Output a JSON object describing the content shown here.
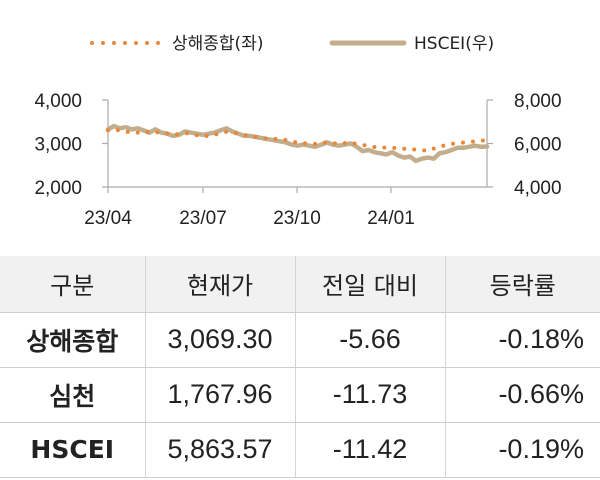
{
  "chart_data": {
    "type": "line",
    "x_ticks": [
      "23/04",
      "23/07",
      "23/10",
      "24/01"
    ],
    "y_left": {
      "ticks": [
        "4,000",
        "3,000",
        "2,000"
      ],
      "range": [
        2000,
        4000
      ]
    },
    "y_right": {
      "ticks": [
        "8,000",
        "6,000",
        "4,000"
      ],
      "range": [
        4000,
        8000
      ]
    },
    "legend_position": "top",
    "series": [
      {
        "name": "상해종합(좌)",
        "axis": "left",
        "style": "dotted",
        "color": "#e8873a",
        "values": [
          3300,
          3320,
          3300,
          3270,
          3260,
          3250,
          3280,
          3250,
          3270,
          3240,
          3230,
          3200,
          3220,
          3240,
          3230,
          3190,
          3160,
          3180,
          3200,
          3240,
          3270,
          3250,
          3230,
          3200,
          3170,
          3150,
          3130,
          3110,
          3110,
          3100,
          3080,
          3050,
          3020,
          3010,
          3000,
          2990,
          3010,
          3030,
          3010,
          2990,
          3010,
          3020,
          2990,
          2970,
          2940,
          2920,
          2910,
          2900,
          2900,
          2890,
          2880,
          2870,
          2860,
          2850,
          2830,
          2880,
          2930,
          2960,
          2990,
          3010,
          3020,
          3030,
          3050,
          3070,
          3069
        ]
      },
      {
        "name": "HSCEI(우)",
        "axis": "right",
        "style": "solid",
        "color": "#c2ae8c",
        "values": [
          6650,
          6800,
          6700,
          6750,
          6650,
          6700,
          6600,
          6500,
          6650,
          6500,
          6450,
          6350,
          6400,
          6550,
          6500,
          6450,
          6400,
          6450,
          6500,
          6600,
          6700,
          6550,
          6450,
          6350,
          6350,
          6300,
          6250,
          6200,
          6150,
          6100,
          6050,
          5950,
          5900,
          5950,
          5900,
          5850,
          5950,
          6050,
          5950,
          5900,
          5950,
          6000,
          5850,
          5650,
          5700,
          5600,
          5550,
          5500,
          5600,
          5450,
          5350,
          5400,
          5200,
          5300,
          5350,
          5300,
          5550,
          5600,
          5700,
          5800,
          5800,
          5850,
          5900,
          5850,
          5864
        ]
      }
    ]
  },
  "table": {
    "headers": [
      "구분",
      "현재가",
      "전일 대비",
      "등락률"
    ],
    "rows": [
      {
        "name": "상해종합",
        "price": "3,069.30",
        "change": "-5.66",
        "rate": "-0.18%"
      },
      {
        "name": "심천",
        "price": "1,767.96",
        "change": "-11.73",
        "rate": "-0.66%"
      },
      {
        "name": "HSCEI",
        "price": "5,863.57",
        "change": "-11.42",
        "rate": "-0.19%"
      }
    ]
  }
}
